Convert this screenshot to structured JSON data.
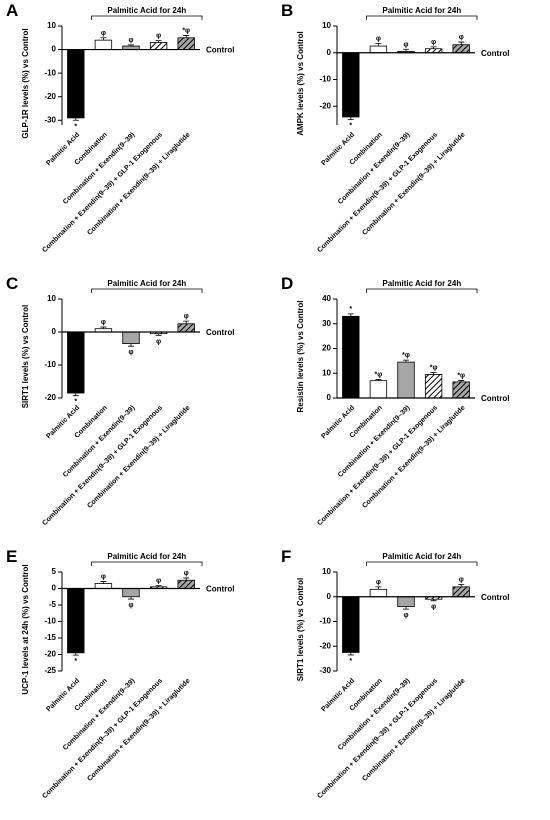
{
  "chart_data": [
    {
      "type": "bar",
      "label": "A",
      "ylabel": "GLP-1R levels (%) vs Control",
      "bracket_label": "Palmitic Acid for 24h",
      "baseline_label": "Control",
      "categories": [
        "Palmitic Acid",
        "Combination",
        "Combination + Exendin(9–39)",
        "Combination + Exendin(9–39) + GLP-1 Exogenous",
        "Combination + Exendin(9–39) + Liraglutide"
      ],
      "values": [
        -29,
        4,
        1.5,
        3,
        5
      ],
      "errors": [
        1,
        1,
        0.5,
        0.8,
        1
      ],
      "markers": [
        "*",
        "φ",
        "φ",
        "φ",
        "*φ"
      ],
      "colors": [
        "#000000",
        "#ffffff",
        "#a6a6a6",
        "#ffffff",
        "#a6a6a6"
      ],
      "hatch": [
        false,
        false,
        false,
        true,
        true
      ],
      "ylim": [
        -32,
        10
      ],
      "yticks": [
        10,
        0,
        -10,
        -20,
        -30
      ]
    },
    {
      "type": "bar",
      "label": "B",
      "ylabel": "AMPK levels (%) vs Control",
      "bracket_label": "Palmitic Acid for 24h",
      "baseline_label": "Control",
      "categories": [
        "Palmitic Acid",
        "Combination",
        "Combination + Exendin(9–39)",
        "Combination + Exendin(9–39) + GLP-1 Exogenous",
        "Combination + Exendin(9–39) + Liraglutide"
      ],
      "values": [
        -24,
        2.5,
        0.5,
        1.5,
        3
      ],
      "errors": [
        1,
        1,
        0.8,
        0.7,
        1
      ],
      "markers": [
        "*",
        "φ",
        "φ",
        "φ",
        "φ"
      ],
      "colors": [
        "#000000",
        "#ffffff",
        "#a6a6a6",
        "#ffffff",
        "#a6a6a6"
      ],
      "hatch": [
        false,
        false,
        false,
        true,
        true
      ],
      "ylim": [
        -27,
        10
      ],
      "yticks": [
        10,
        0,
        -10,
        -20
      ]
    },
    {
      "type": "bar",
      "label": "C",
      "ylabel": "SIRT1 levels (%) vs Control",
      "bracket_label": "Palmitic Acid for 24h",
      "baseline_label": "Control",
      "categories": [
        "Palmitic Acid",
        "Combination",
        "Combination + Exendin(9–39)",
        "Combination + Exendin(9–39) + GLP-1 Exogenous",
        "Combination + Exendin(9–39) + Liraglutide"
      ],
      "values": [
        -18.5,
        1,
        -3.5,
        -0.5,
        2.5
      ],
      "errors": [
        0.8,
        0.5,
        0.8,
        0.5,
        0.8
      ],
      "markers": [
        "*",
        "φ",
        "φ",
        "φ",
        "φ"
      ],
      "colors": [
        "#000000",
        "#ffffff",
        "#a6a6a6",
        "#ffffff",
        "#a6a6a6"
      ],
      "hatch": [
        false,
        false,
        false,
        true,
        true
      ],
      "ylim": [
        -20,
        10
      ],
      "yticks": [
        10,
        0,
        -10,
        -20
      ]
    },
    {
      "type": "bar",
      "label": "D",
      "ylabel": "Resistin levels (%) vs Control",
      "bracket_label": "Palmitic Acid for 24h",
      "baseline_label": "Control",
      "categories": [
        "Palmitic Acid",
        "Combination",
        "Combination + Exendin(9–39)",
        "Combination + Exendin(9–39) + GLP-1 Exogenous",
        "Combination + Exendin(9–39) + Liraglutide"
      ],
      "values": [
        33,
        7,
        14.5,
        9.5,
        6.5
      ],
      "errors": [
        1,
        0.5,
        0.8,
        0.8,
        0.6
      ],
      "markers": [
        "*",
        "*φ",
        "*φ",
        "*φ",
        "*φ"
      ],
      "colors": [
        "#000000",
        "#ffffff",
        "#a6a6a6",
        "#ffffff",
        "#a6a6a6"
      ],
      "hatch": [
        false,
        false,
        false,
        true,
        true
      ],
      "ylim": [
        0,
        40
      ],
      "yticks": [
        0,
        10,
        20,
        30,
        40
      ]
    },
    {
      "type": "bar",
      "label": "E",
      "ylabel": "UCP-1 levels at 24h (%) vs Control",
      "bracket_label": "Palmitic Acid for 24h",
      "baseline_label": "Control",
      "categories": [
        "Palmitic Acid",
        "Combination",
        "Combination + Exendin(9–39)",
        "Combination + Exendin(9–39) + GLP-1 Exogenous",
        "Combination + Exendin(9–39) + Liraglutide"
      ],
      "values": [
        -19.5,
        1.5,
        -2.5,
        0.5,
        2.5
      ],
      "errors": [
        0.7,
        0.6,
        0.7,
        0.4,
        0.7
      ],
      "markers": [
        "*",
        "φ",
        "φ",
        "φ",
        "φ"
      ],
      "colors": [
        "#000000",
        "#ffffff",
        "#a6a6a6",
        "#ffffff",
        "#a6a6a6"
      ],
      "hatch": [
        false,
        false,
        false,
        true,
        true
      ],
      "ylim": [
        -25,
        5
      ],
      "yticks": [
        5,
        0,
        -5,
        -10,
        -15,
        -20,
        -25
      ]
    },
    {
      "type": "bar",
      "label": "F",
      "ylabel": "SIRT1 levels (%) vs Control",
      "bracket_label": "Palmitic Acid for 24h",
      "baseline_label": "Control",
      "categories": [
        "Palmitic Acid",
        "Combination",
        "Combination + Exendin(9–39)",
        "Combination + Exendin(9–39) + GLP-1 Exogenous",
        "Combination + Exendin(9–39) + Liraglutide"
      ],
      "values": [
        -22.5,
        3,
        -4,
        -1,
        4
      ],
      "errors": [
        1,
        1,
        1,
        0.6,
        1
      ],
      "markers": [
        "*",
        "φ",
        "φ",
        "φ",
        "φ"
      ],
      "colors": [
        "#000000",
        "#ffffff",
        "#a6a6a6",
        "#ffffff",
        "#a6a6a6"
      ],
      "hatch": [
        false,
        false,
        false,
        true,
        true
      ],
      "ylim": [
        -30,
        10
      ],
      "yticks": [
        10,
        0,
        -10,
        -20,
        -30
      ]
    }
  ]
}
